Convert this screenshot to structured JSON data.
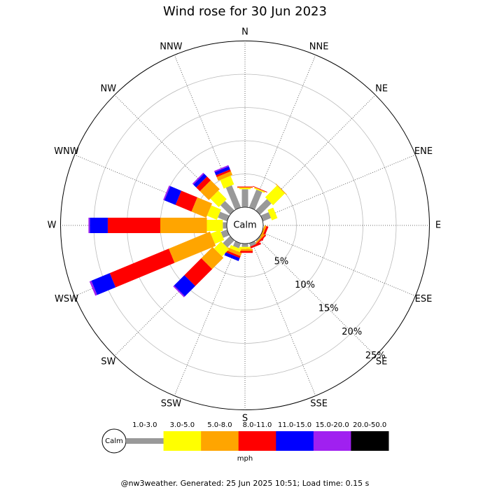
{
  "chart_data": {
    "type": "windrose",
    "title": "Wind rose for 30 Jun 2023",
    "directions": [
      "N",
      "NNE",
      "NE",
      "ENE",
      "E",
      "ESE",
      "SE",
      "SSE",
      "S",
      "SSW",
      "SW",
      "WSW",
      "W",
      "WNW",
      "NW",
      "NNW"
    ],
    "calm_label": "Calm",
    "unit": "mph",
    "rlim": [
      0,
      25
    ],
    "rticks": [
      {
        "value": 5,
        "label": "5%"
      },
      {
        "value": 10,
        "label": "10%"
      },
      {
        "value": 15,
        "label": "15%"
      },
      {
        "value": 20,
        "label": "20%"
      },
      {
        "value": 25,
        "label": "25%"
      }
    ],
    "series": [
      {
        "name": "1.0-3.0",
        "color": "#999999",
        "values": [
          2.7,
          2.9,
          2.4,
          1.3,
          0,
          0,
          0.2,
          0.5,
          0.5,
          0.8,
          1.5,
          1,
          0.6,
          1.5,
          2.0,
          3.6
        ]
      },
      {
        "name": "3.0-5.0",
        "color": "#ffff00",
        "values": [
          0.2,
          0.2,
          2.5,
          0.9,
          0,
          0,
          0,
          0,
          0.3,
          0.5,
          1.5,
          1.5,
          2.4,
          1.6,
          1.8,
          1.4
        ]
      },
      {
        "name": "5.0-8.0",
        "color": "#ffa500",
        "values": [
          0.1,
          0,
          0.1,
          0,
          0,
          0.3,
          0.2,
          0,
          0.3,
          0.5,
          2.4,
          6.7,
          7.0,
          2.4,
          1.9,
          0.6
        ]
      },
      {
        "name": "8.0-11.0",
        "color": "#ff0000",
        "values": [
          0.1,
          0.1,
          0,
          0,
          0,
          0.3,
          0.2,
          0.3,
          0.3,
          0.3,
          3.6,
          9.6,
          7.9,
          2.6,
          0.8,
          0.3
        ]
      },
      {
        "name": "11.0-15.0",
        "color": "#0000ff",
        "values": [
          0,
          0,
          0,
          0,
          0,
          0,
          0,
          0,
          0,
          0.5,
          2.2,
          3,
          2.7,
          1.8,
          0.6,
          0.5
        ]
      },
      {
        "name": "15.0-20.0",
        "color": "#a020f0",
        "values": [
          0,
          0,
          0,
          0,
          0,
          0,
          0,
          0,
          0,
          0,
          0.2,
          0.3,
          0.2,
          0.2,
          0.2,
          0.2
        ]
      },
      {
        "name": "20.0-50.0",
        "color": "#000000",
        "values": [
          0,
          0,
          0,
          0,
          0,
          0,
          0,
          0,
          0,
          0,
          0,
          0,
          0,
          0,
          0,
          0
        ]
      }
    ],
    "footer": "@nw3weather. Generated: 25 Jun 2025 10:51; Load time: 0.15 s"
  }
}
